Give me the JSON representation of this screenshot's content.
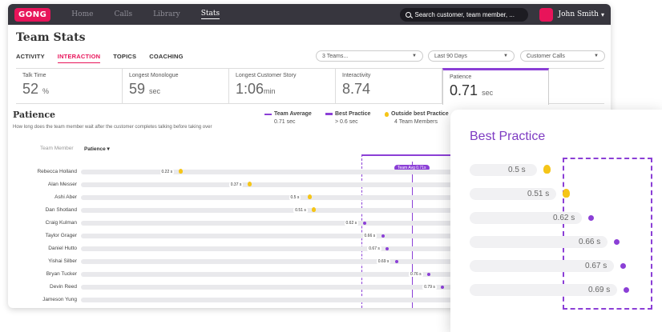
{
  "app": {
    "logo": "GONG",
    "nav": [
      "Home",
      "Calls",
      "Library",
      "Stats"
    ],
    "search_placeholder": "Search customer, team member, ...",
    "user_name": "John Smith",
    "title": "Team Stats"
  },
  "tabs": [
    "ACTIVITY",
    "INTERACTION",
    "TOPICS",
    "COACHING"
  ],
  "filters": [
    "3 Teams...",
    "Last 90 Days",
    "Customer Calls"
  ],
  "cards": [
    {
      "label": "Talk Time",
      "value": "52",
      "unit": "%"
    },
    {
      "label": "Longest Monologue",
      "value": "59",
      "unit": "sec"
    },
    {
      "label": "Longest Customer Story",
      "value": "1:06",
      "unit": "min"
    },
    {
      "label": "Interactivity",
      "value": "8.74",
      "unit": ""
    },
    {
      "label": "Patience",
      "value": "0.71",
      "unit": "sec"
    }
  ],
  "patience": {
    "title": "Patience",
    "description": "How long does the team member wait after the customer completes talking before taking over",
    "legend": [
      {
        "label": "Team Average",
        "value": "0.71 sec",
        "color": "#8b3fd6"
      },
      {
        "label": "Best Practice",
        "value": "> 0.6 sec",
        "color": "#8b3fd6"
      },
      {
        "label": "Outside best Practice",
        "value": "4 Team Members",
        "color": "#f5c518"
      }
    ],
    "col_member": "Team Member",
    "col_patience": "Patience",
    "team_tag": "Team Avg 0.71s",
    "rows": [
      {
        "name": "Rebecca Holland",
        "value": "0.22 s",
        "v": 0.22,
        "flag": true
      },
      {
        "name": "Alan Messer",
        "value": "0.37 s",
        "v": 0.37,
        "flag": true
      },
      {
        "name": "Ashi Aber",
        "value": "0.5 s",
        "v": 0.5,
        "flag": true
      },
      {
        "name": "Dan Shotland",
        "value": "0.51 s",
        "v": 0.51,
        "flag": true
      },
      {
        "name": "Craig Kulman",
        "value": "0.62 s",
        "v": 0.62,
        "flag": false
      },
      {
        "name": "Taylor Grager",
        "value": "0.66 s",
        "v": 0.66,
        "flag": false
      },
      {
        "name": "Daniel Hutto",
        "value": "0.67 s",
        "v": 0.67,
        "flag": false
      },
      {
        "name": "Yishai Silber",
        "value": "0.69 s",
        "v": 0.69,
        "flag": false
      },
      {
        "name": "Bryan Tucker",
        "value": "0.76 s",
        "v": 0.76,
        "flag": false
      },
      {
        "name": "Devin Reed",
        "value": "0.79 s",
        "v": 0.79,
        "flag": false
      },
      {
        "name": "Jameson Yung",
        "value": "",
        "v": 0.85,
        "flag": false
      }
    ]
  },
  "best_practice_panel": {
    "title": "Best Practice",
    "rows": [
      {
        "value": "0.5 s",
        "flag": true
      },
      {
        "value": "0.51 s",
        "flag": true
      },
      {
        "value": "0.62 s",
        "flag": false
      },
      {
        "value": "0.66 s",
        "flag": false
      },
      {
        "value": "0.67 s",
        "flag": false
      },
      {
        "value": "0.69 s",
        "flag": false
      }
    ]
  }
}
